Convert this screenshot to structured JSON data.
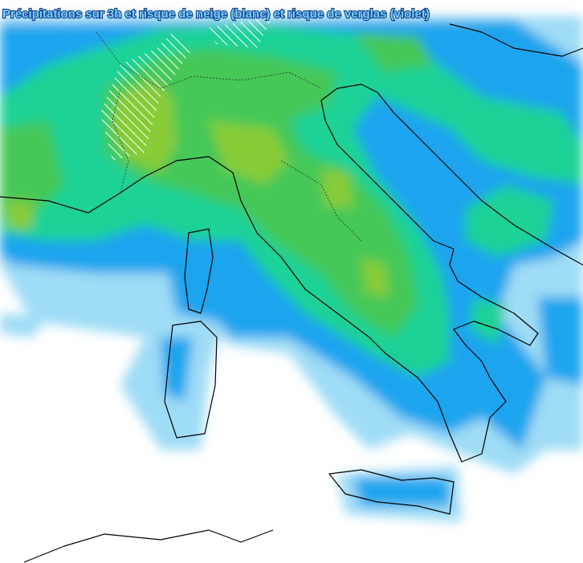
{
  "title": "Précipitations sur 3h et risque de neige (blanc) et risque de verglas (violet)"
}
